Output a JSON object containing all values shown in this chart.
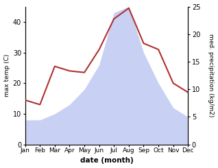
{
  "months": [
    "Jan",
    "Feb",
    "Mar",
    "Apr",
    "May",
    "Jun",
    "Jul",
    "Aug",
    "Sep",
    "Oct",
    "Nov",
    "Dec"
  ],
  "temp": [
    14.5,
    13.0,
    25.5,
    24.0,
    23.5,
    31.0,
    41.0,
    44.5,
    33.0,
    31.0,
    20.0,
    17.0
  ],
  "precip": [
    8.0,
    8.0,
    10.0,
    13.0,
    18.0,
    26.0,
    43.0,
    45.0,
    30.0,
    20.0,
    12.0,
    9.0
  ],
  "temp_color": "#b03030",
  "precip_fill_color": "#c8d0f4",
  "left_ylim": [
    0,
    45
  ],
  "right_ylim": [
    0,
    25
  ],
  "left_yticks": [
    0,
    10,
    20,
    30,
    40
  ],
  "right_yticks": [
    0,
    5,
    10,
    15,
    20,
    25
  ],
  "xlabel": "date (month)",
  "ylabel_left": "max temp (C)",
  "ylabel_right": "med. precipitation (kg/m2)",
  "background_color": "#ffffff"
}
